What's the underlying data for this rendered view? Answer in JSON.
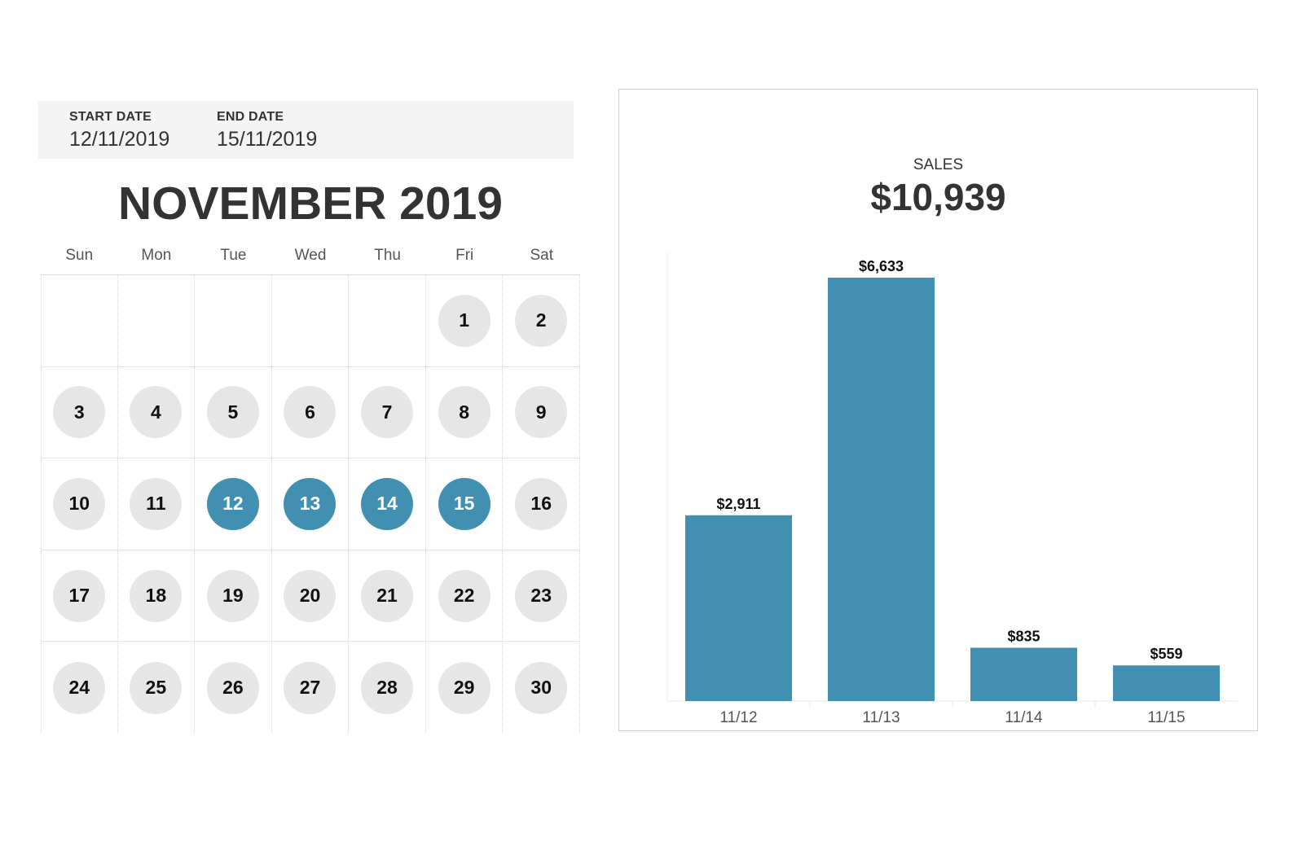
{
  "date_range": {
    "start_label": "START DATE",
    "start_value": "12/11/2019",
    "end_label": "END DATE",
    "end_value": "15/11/2019"
  },
  "calendar": {
    "title": "NOVEMBER 2019",
    "weekdays": [
      "Sun",
      "Mon",
      "Tue",
      "Wed",
      "Thu",
      "Fri",
      "Sat"
    ],
    "first_weekday_index": 5,
    "days_in_month": 30,
    "selected_days": [
      12,
      13,
      14,
      15
    ],
    "colors": {
      "day_default": "#e6e6e6",
      "day_selected": "#4190b1",
      "text_default": "#111111",
      "text_selected": "#ffffff"
    }
  },
  "sales": {
    "label": "SALES",
    "total": "$10,939"
  },
  "chart_data": {
    "type": "bar",
    "title": "",
    "xlabel": "",
    "ylabel": "",
    "categories": [
      "11/12",
      "11/13",
      "11/14",
      "11/15"
    ],
    "values": [
      2911,
      6633,
      835,
      559
    ],
    "value_labels": [
      "$2,911",
      "$6,633",
      "$835",
      "$559"
    ],
    "ylim": [
      0,
      6633
    ],
    "grid": false,
    "bar_color": "#4190b1"
  }
}
